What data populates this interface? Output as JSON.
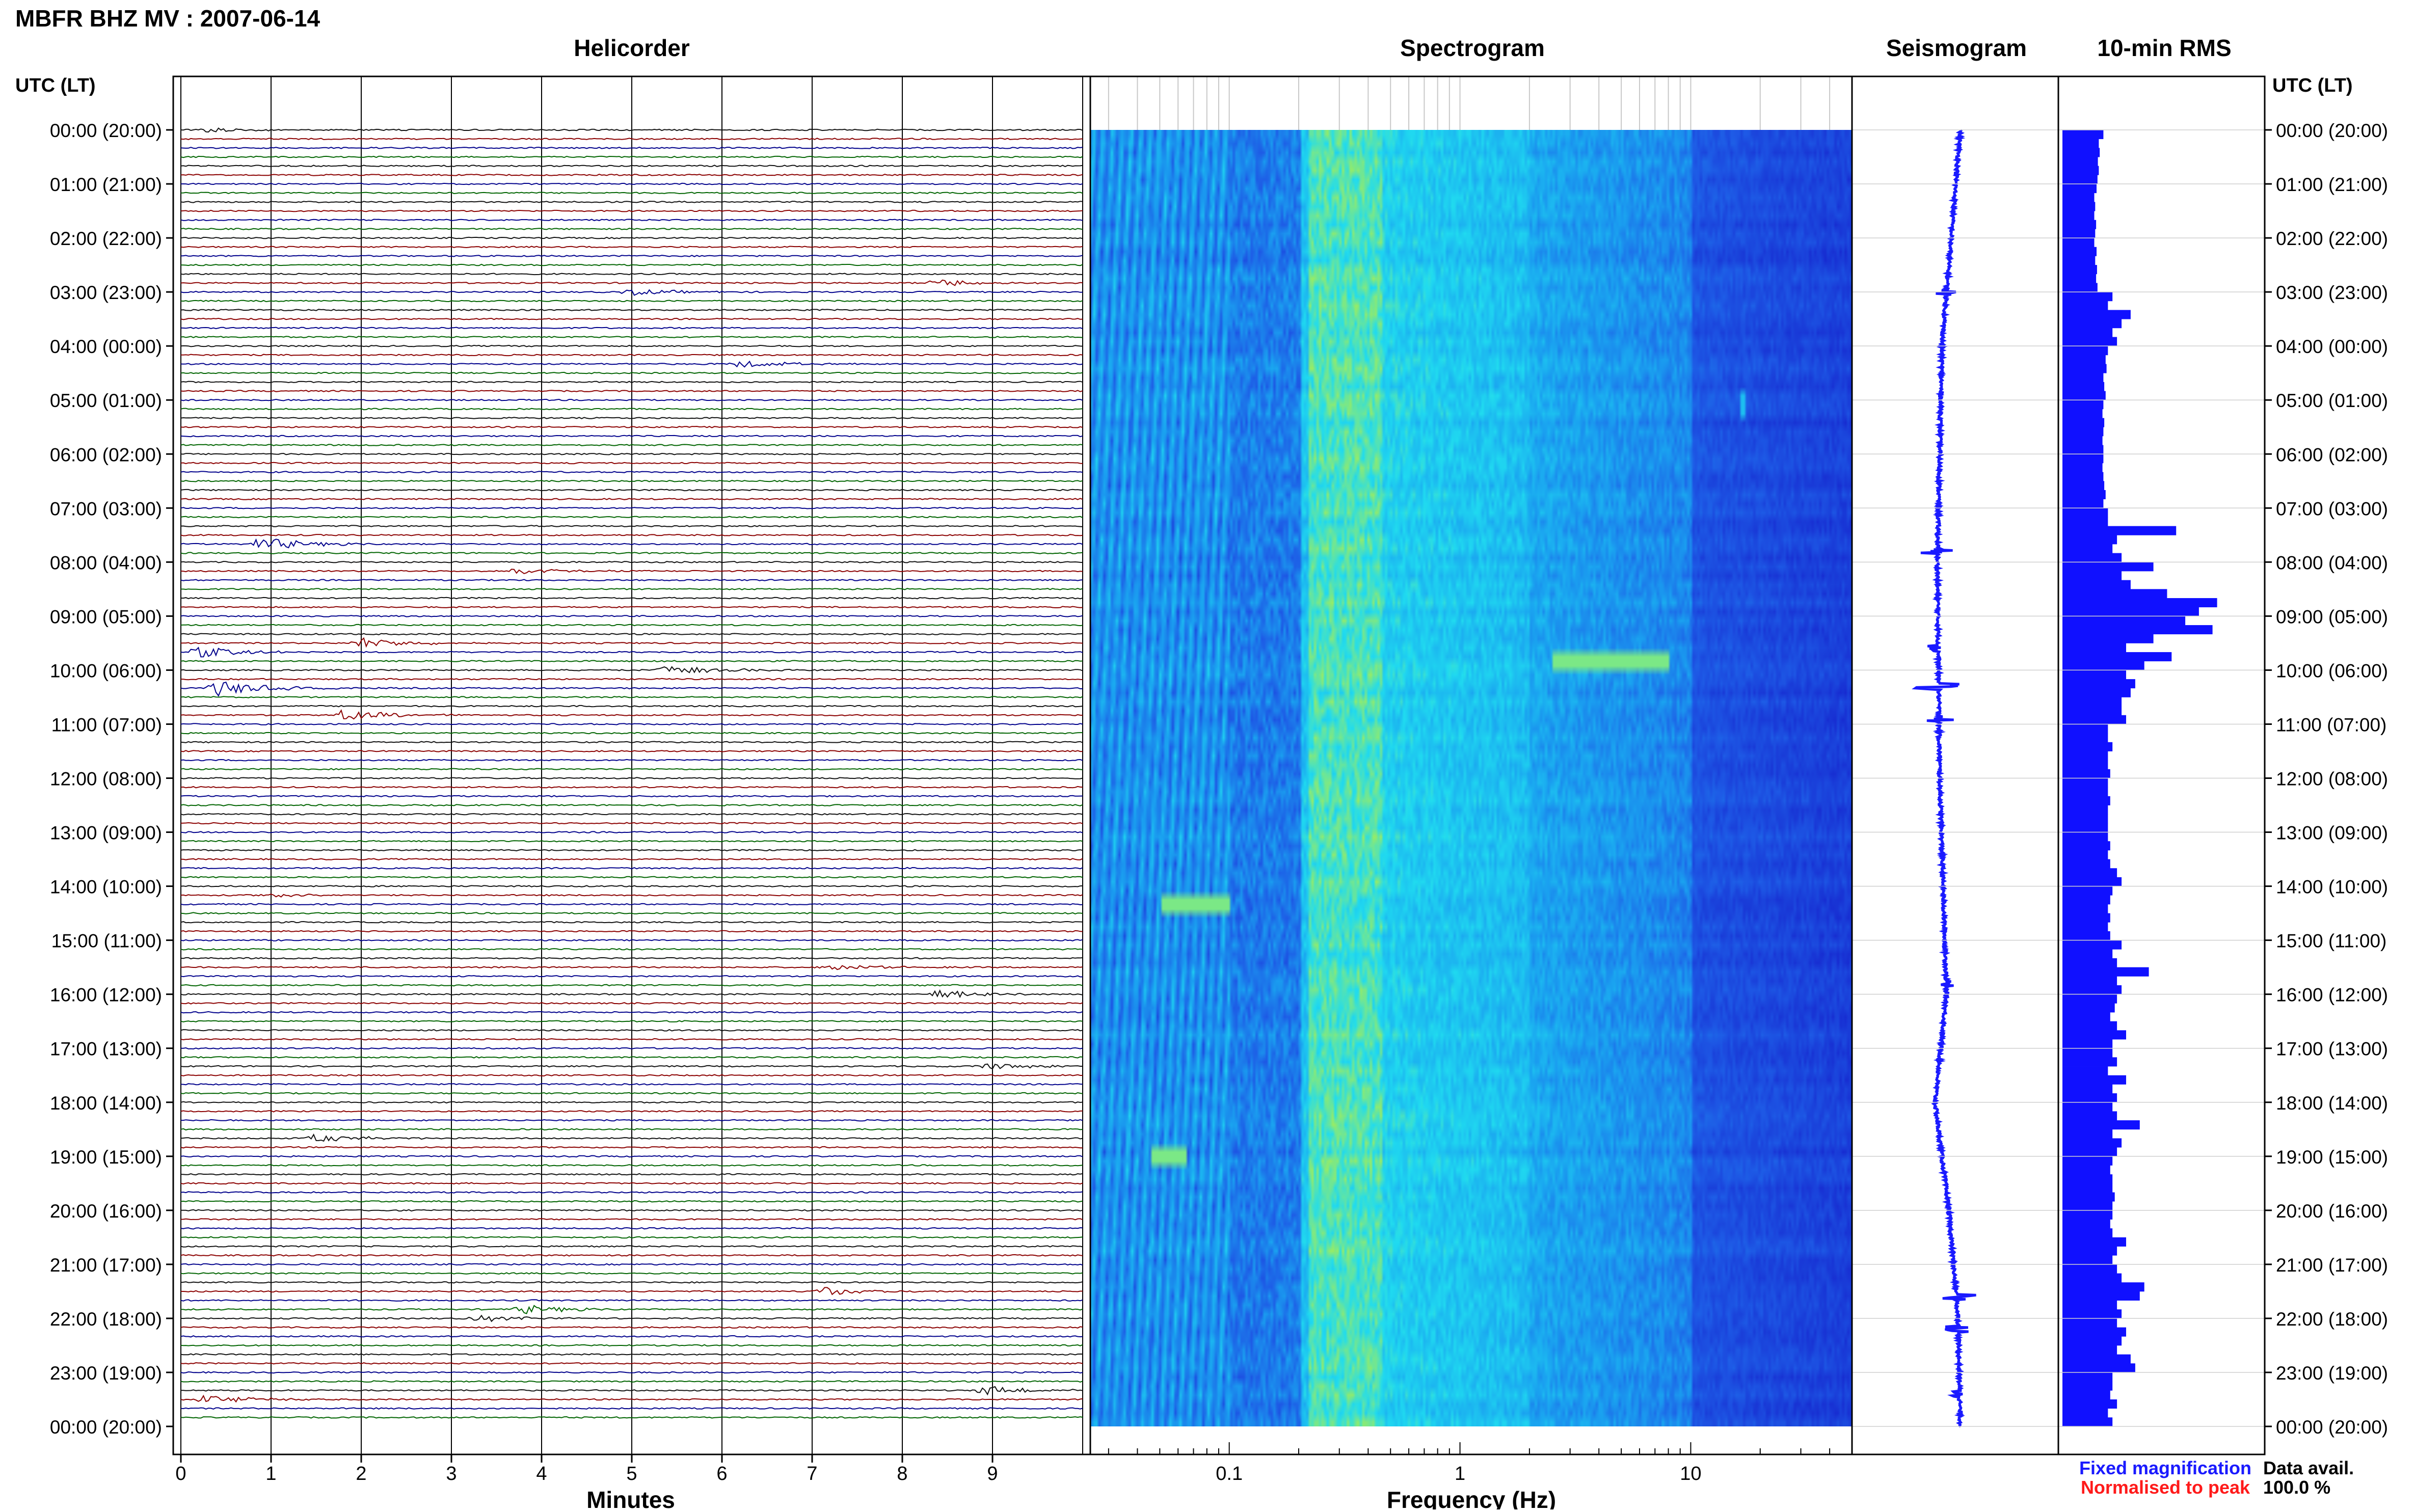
{
  "page": {
    "title": "MBFR BHZ MV : 2007-06-14",
    "panels": {
      "helicorder": "Helicorder",
      "spectrogram": "Spectrogram",
      "seismogram": "Seismogram",
      "rms": "10-min RMS"
    },
    "time_axis_header": "UTC (LT)",
    "footer": {
      "fixed": "Fixed magnification",
      "normalised": "Normalised to peak",
      "data_avail_label": "Data avail.",
      "data_avail_value": "100.0 %"
    },
    "colors": {
      "fixed": "#1a1aff",
      "normalised": "#ff1a1a",
      "trace_black": "#111111",
      "trace_red": "#8b0000",
      "trace_blue": "#00008b",
      "trace_green": "#006400",
      "rms_bar": "#1010ff"
    }
  },
  "chart_data": [
    {
      "type": "line",
      "name": "helicorder",
      "title": "Helicorder",
      "xlabel": "Minutes",
      "ylabel": "UTC (LT)",
      "xlim": [
        0,
        10
      ],
      "x_ticks": [
        "0",
        "1",
        "2",
        "3",
        "4",
        "5",
        "6",
        "7",
        "8",
        "9"
      ],
      "y_ticks": [
        "00:00 (20:00)",
        "01:00 (21:00)",
        "02:00 (22:00)",
        "03:00 (23:00)",
        "04:00 (00:00)",
        "05:00 (01:00)",
        "06:00 (02:00)",
        "07:00 (03:00)",
        "08:00 (04:00)",
        "09:00 (05:00)",
        "10:00 (06:00)",
        "11:00 (07:00)",
        "12:00 (08:00)",
        "13:00 (09:00)",
        "14:00 (10:00)",
        "15:00 (11:00)",
        "16:00 (12:00)",
        "17:00 (13:00)",
        "18:00 (14:00)",
        "19:00 (15:00)",
        "20:00 (16:00)",
        "21:00 (17:00)",
        "22:00 (18:00)",
        "23:00 (19:00)",
        "00:00 (20:00)"
      ],
      "trace_colors_cycle": [
        "black",
        "red",
        "blue",
        "green"
      ],
      "traces_per_hour": 6,
      "events": [
        {
          "hour": 0.0,
          "minute": 0.3,
          "amp": 0.6,
          "color": "black"
        },
        {
          "hour": 2.83,
          "minute": 8.4,
          "amp": 0.9,
          "color": "red"
        },
        {
          "hour": 3.0,
          "minute": 5.0,
          "amp": 0.7,
          "color": "blue"
        },
        {
          "hour": 4.33,
          "minute": 6.2,
          "amp": 0.8,
          "color": "blue"
        },
        {
          "hour": 7.67,
          "minute": 0.9,
          "amp": 1.5,
          "color": "blue"
        },
        {
          "hour": 8.17,
          "minute": 3.7,
          "amp": 0.7,
          "color": "red"
        },
        {
          "hour": 9.5,
          "minute": 2.0,
          "amp": 1.3,
          "color": "black"
        },
        {
          "hour": 9.67,
          "minute": 0.2,
          "amp": 1.2,
          "color": "red"
        },
        {
          "hour": 10.0,
          "minute": 5.4,
          "amp": 1.2,
          "color": "black"
        },
        {
          "hour": 10.33,
          "minute": 0.4,
          "amp": 1.8,
          "color": "blue"
        },
        {
          "hour": 10.83,
          "minute": 1.8,
          "amp": 1.3,
          "color": "red"
        },
        {
          "hour": 14.17,
          "minute": 1.0,
          "amp": 0.4,
          "color": "black"
        },
        {
          "hour": 15.5,
          "minute": 7.2,
          "amp": 0.8,
          "color": "red"
        },
        {
          "hour": 16.0,
          "minute": 8.4,
          "amp": 1.0,
          "color": "black"
        },
        {
          "hour": 17.33,
          "minute": 8.9,
          "amp": 0.8,
          "color": "black"
        },
        {
          "hour": 18.67,
          "minute": 1.5,
          "amp": 0.9,
          "color": "black"
        },
        {
          "hour": 21.5,
          "minute": 7.1,
          "amp": 1.0,
          "color": "red"
        },
        {
          "hour": 21.83,
          "minute": 3.8,
          "amp": 1.0,
          "color": "green"
        },
        {
          "hour": 22.0,
          "minute": 3.3,
          "amp": 0.7,
          "color": "red"
        },
        {
          "hour": 23.33,
          "minute": 8.9,
          "amp": 1.1,
          "color": "black"
        },
        {
          "hour": 23.5,
          "minute": 0.3,
          "amp": 1.1,
          "color": "red"
        }
      ]
    },
    {
      "type": "heatmap",
      "name": "spectrogram",
      "title": "Spectrogram",
      "xlabel": "Frequency (Hz)",
      "x_scale": "log",
      "xlim": [
        0.025,
        50
      ],
      "x_ticks": [
        "0.1",
        "1",
        "10"
      ],
      "colormap": [
        "#1418c8",
        "#1e5ae6",
        "#1aa0f0",
        "#20dcf0",
        "#b8f040"
      ],
      "bright_band_hz": [
        0.22,
        0.45
      ],
      "features": [
        {
          "hour": 9.8,
          "f_low": 2.5,
          "f_high": 8.0,
          "note_level": "high"
        },
        {
          "hour": 14.2,
          "f_low": 0.05,
          "f_high": 0.1,
          "note_level": "high"
        },
        {
          "hour": 18.9,
          "f_low": 0.045,
          "f_high": 0.065,
          "note_level": "high"
        },
        {
          "hour": 5.0,
          "f_low": 16,
          "f_high": 17,
          "note_level": "medium"
        }
      ]
    },
    {
      "type": "line",
      "name": "seismogram",
      "title": "Seismogram",
      "ylim": [
        0,
        24
      ],
      "drift": [
        {
          "hour": 0,
          "offset": 0.0
        },
        {
          "hour": 4,
          "offset": -0.4
        },
        {
          "hour": 8,
          "offset": -0.5
        },
        {
          "hour": 12,
          "offset": -0.45
        },
        {
          "hour": 16,
          "offset": -0.3
        },
        {
          "hour": 18,
          "offset": -0.55
        },
        {
          "hour": 20,
          "offset": -0.25
        },
        {
          "hour": 22,
          "offset": -0.05
        },
        {
          "hour": 24,
          "offset": 0.0
        }
      ],
      "spikes": [
        {
          "hour": 3.0,
          "amp": 0.25
        },
        {
          "hour": 7.8,
          "amp": 0.4
        },
        {
          "hour": 9.6,
          "amp": 0.3
        },
        {
          "hour": 10.3,
          "amp": 0.55
        },
        {
          "hour": 10.9,
          "amp": 0.35
        },
        {
          "hour": 15.8,
          "amp": 0.2
        },
        {
          "hour": 21.6,
          "amp": 0.45
        },
        {
          "hour": 22.2,
          "amp": 0.3
        },
        {
          "hour": 23.4,
          "amp": 0.2
        }
      ]
    },
    {
      "type": "bar",
      "name": "rms",
      "title": "10-min RMS",
      "orientation": "horizontal",
      "interval_minutes": 10,
      "values": [
        0.9,
        0.8,
        0.82,
        0.78,
        0.8,
        0.77,
        0.75,
        0.7,
        0.72,
        0.7,
        0.74,
        0.72,
        0.7,
        0.75,
        0.72,
        0.76,
        0.74,
        0.77,
        1.1,
        1.0,
        1.5,
        1.3,
        1.1,
        1.2,
        1.0,
        0.95,
        0.97,
        0.9,
        0.92,
        0.95,
        0.9,
        0.88,
        0.92,
        0.9,
        0.88,
        0.9,
        0.9,
        0.88,
        0.9,
        0.92,
        0.95,
        0.9,
        1.0,
        1.0,
        2.5,
        1.2,
        1.1,
        1.3,
        2.0,
        1.3,
        1.5,
        2.3,
        3.4,
        3.0,
        2.7,
        3.3,
        2.0,
        1.4,
        2.4,
        1.8,
        1.4,
        1.6,
        1.5,
        1.3,
        1.3,
        1.4,
        1.0,
        1.0,
        1.1,
        1.0,
        1.0,
        1.05,
        1.0,
        1.0,
        1.05,
        1.0,
        1.0,
        1.0,
        1.0,
        1.05,
        1.0,
        1.05,
        1.2,
        1.3,
        1.1,
        1.05,
        1.0,
        1.05,
        1.0,
        1.05,
        1.3,
        1.1,
        1.2,
        1.9,
        1.2,
        1.3,
        1.2,
        1.15,
        1.05,
        1.2,
        1.4,
        1.1,
        1.1,
        1.2,
        1.0,
        1.4,
        1.1,
        1.2,
        1.1,
        1.2,
        1.7,
        1.1,
        1.3,
        1.2,
        1.1,
        1.05,
        1.1,
        1.1,
        1.15,
        1.1,
        1.1,
        1.05,
        1.1,
        1.4,
        1.2,
        1.1,
        1.2,
        1.3,
        1.8,
        1.7,
        1.2,
        1.3,
        1.2,
        1.4,
        1.3,
        1.2,
        1.5,
        1.6,
        1.1,
        1.1,
        1.05,
        1.2,
        1.0,
        1.1
      ]
    }
  ]
}
